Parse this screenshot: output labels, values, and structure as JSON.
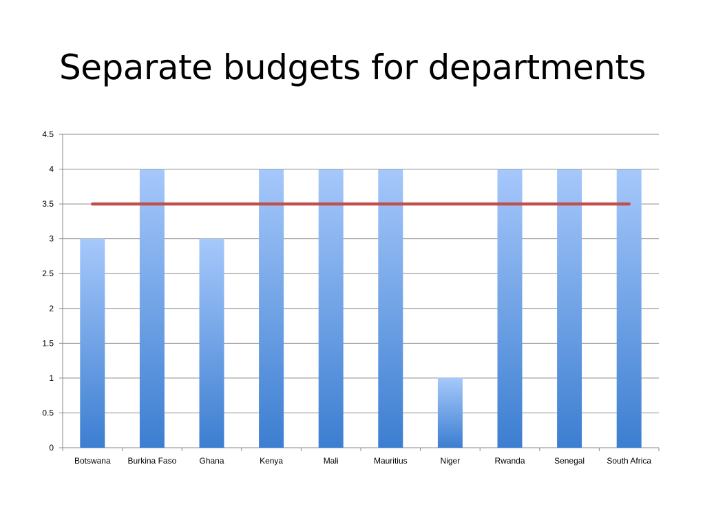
{
  "slide": {
    "title": "Separate budgets for departments"
  },
  "chart_data": {
    "type": "bar",
    "title": "",
    "xlabel": "",
    "ylabel": "",
    "categories": [
      "Botswana",
      "Burkina Faso",
      "Ghana",
      "Kenya",
      "Mali",
      "Mauritius",
      "Niger",
      "Rwanda",
      "Senegal",
      "South Africa"
    ],
    "series": [
      {
        "type": "bar",
        "values": [
          3,
          4,
          3,
          4,
          4,
          4,
          1,
          4,
          4,
          4
        ]
      },
      {
        "type": "line",
        "values": [
          3.5,
          3.5,
          3.5,
          3.5,
          3.5,
          3.5,
          3.5,
          3.5,
          3.5,
          3.5
        ]
      }
    ],
    "ylim": [
      0,
      4.5
    ],
    "yticks": [
      "0",
      "0.5",
      "1",
      "1.5",
      "2",
      "2.5",
      "3",
      "3.5",
      "4",
      "4.5"
    ],
    "grid": true,
    "legend": "none",
    "colors": {
      "bar_top": "#A6C8FB",
      "bar_bottom": "#3C7ED1",
      "line": "#C0504D",
      "grid": "#898989",
      "axis": "#898989"
    }
  }
}
